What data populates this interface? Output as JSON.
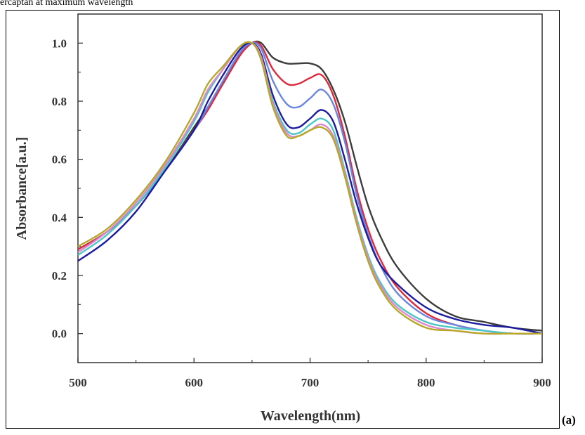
{
  "caption": "ercaptan at maximum wavelength",
  "panel_label": "(a)",
  "chart_data": {
    "type": "line",
    "xlabel": "Wavelength(nm)",
    "ylabel": "Absorbance[a.u.]",
    "xlim": [
      500,
      900
    ],
    "ylim": [
      -0.1,
      1.1
    ],
    "x_ticks": [
      "500",
      "600",
      "700",
      "800",
      "900"
    ],
    "y_ticks": [
      "0.0",
      "0.2",
      "0.4",
      "0.6",
      "0.8",
      "1.0"
    ],
    "grid": false,
    "legend": "none",
    "x": [
      500,
      525,
      550,
      575,
      600,
      612,
      625,
      640,
      650,
      658,
      668,
      680,
      690,
      700,
      710,
      720,
      730,
      740,
      750,
      760,
      775,
      800,
      825,
      850,
      875,
      900
    ],
    "series": [
      {
        "color": "#3d3d3d",
        "values": [
          0.29,
          0.35,
          0.44,
          0.56,
          0.71,
          0.78,
          0.86,
          0.96,
          1.0,
          1.0,
          0.95,
          0.93,
          0.93,
          0.93,
          0.91,
          0.84,
          0.73,
          0.58,
          0.44,
          0.34,
          0.23,
          0.12,
          0.06,
          0.04,
          0.02,
          0.01
        ]
      },
      {
        "color": "#e0283a",
        "values": [
          0.29,
          0.35,
          0.44,
          0.56,
          0.7,
          0.77,
          0.86,
          0.96,
          1.0,
          0.99,
          0.91,
          0.86,
          0.86,
          0.88,
          0.89,
          0.82,
          0.68,
          0.5,
          0.36,
          0.26,
          0.16,
          0.07,
          0.03,
          0.01,
          0.0,
          0.0
        ]
      },
      {
        "color": "#6b86dd",
        "values": [
          0.28,
          0.35,
          0.44,
          0.56,
          0.7,
          0.78,
          0.87,
          0.97,
          1.0,
          0.98,
          0.87,
          0.79,
          0.78,
          0.81,
          0.84,
          0.79,
          0.66,
          0.48,
          0.34,
          0.24,
          0.14,
          0.06,
          0.03,
          0.01,
          0.0,
          0.0
        ]
      },
      {
        "color": "#1c1c9e",
        "values": [
          0.25,
          0.32,
          0.42,
          0.56,
          0.7,
          0.8,
          0.89,
          0.98,
          1.0,
          0.96,
          0.82,
          0.72,
          0.71,
          0.74,
          0.77,
          0.73,
          0.6,
          0.45,
          0.33,
          0.24,
          0.17,
          0.09,
          0.05,
          0.03,
          0.02,
          0.0
        ]
      },
      {
        "color": "#4dc6c6",
        "values": [
          0.27,
          0.34,
          0.44,
          0.57,
          0.73,
          0.83,
          0.91,
          0.99,
          1.0,
          0.95,
          0.8,
          0.7,
          0.69,
          0.72,
          0.74,
          0.7,
          0.56,
          0.4,
          0.27,
          0.18,
          0.1,
          0.04,
          0.02,
          0.01,
          0.0,
          0.0
        ]
      },
      {
        "color": "#dd88cc",
        "values": [
          0.28,
          0.35,
          0.45,
          0.58,
          0.74,
          0.84,
          0.91,
          0.99,
          1.0,
          0.95,
          0.79,
          0.69,
          0.68,
          0.7,
          0.72,
          0.68,
          0.55,
          0.39,
          0.26,
          0.17,
          0.09,
          0.03,
          0.01,
          0.0,
          0.0,
          0.0
        ]
      },
      {
        "color": "#b7a82a",
        "values": [
          0.3,
          0.36,
          0.46,
          0.59,
          0.76,
          0.86,
          0.92,
          0.99,
          1.0,
          0.94,
          0.78,
          0.68,
          0.68,
          0.7,
          0.71,
          0.67,
          0.54,
          0.38,
          0.25,
          0.16,
          0.08,
          0.02,
          0.01,
          0.0,
          0.0,
          0.0
        ]
      }
    ]
  }
}
